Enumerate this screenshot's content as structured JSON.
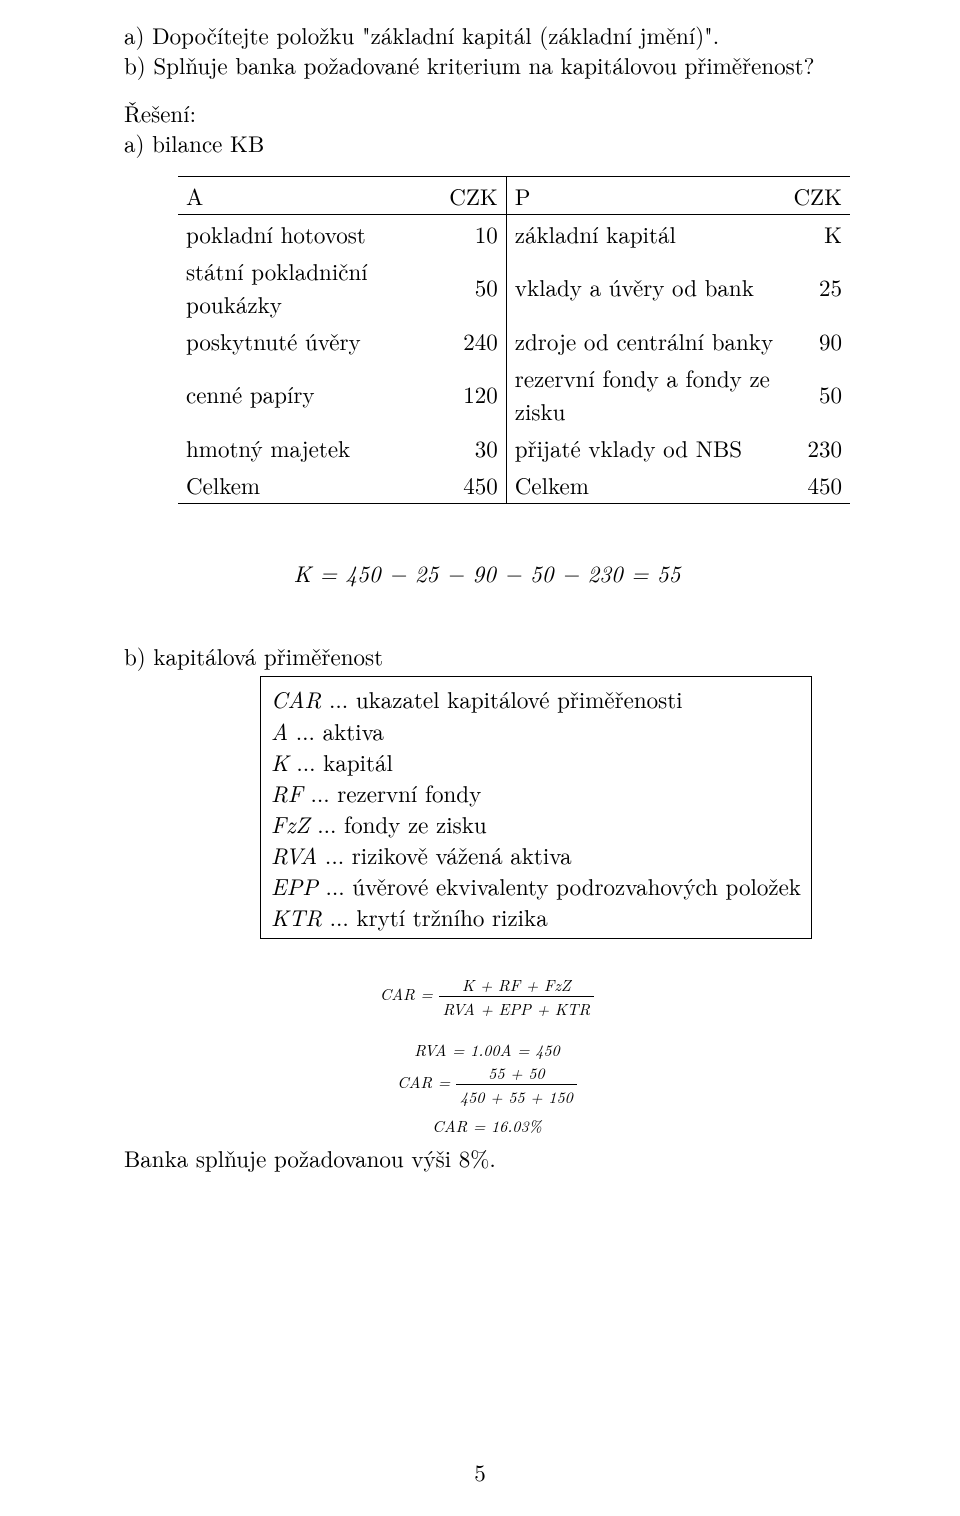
{
  "intro": {
    "q1": "a) Dopočítejte položku \"základní kapitál (základní jmění)\".",
    "q2": "b) Splňuje banka požadované kriterium na kapitálovou přiměřenost?"
  },
  "solution_heading": "Řešení:",
  "part_a_label": "a) bilance KB",
  "balance_table": {
    "header": {
      "a": "A",
      "czk": "CZK",
      "p": "P"
    },
    "rows": [
      {
        "l_label": "pokladní hotovost",
        "l_val": "10",
        "r_label": "základní kapitál",
        "r_val": "K"
      },
      {
        "l_label": "státní pokladniční poukázky",
        "l_val": "50",
        "r_label": "vklady a úvěry od bank",
        "r_val": "25"
      },
      {
        "l_label": "poskytnuté úvěry",
        "l_val": "240",
        "r_label": "zdroje od centrální banky",
        "r_val": "90"
      },
      {
        "l_label": "cenné papíry",
        "l_val": "120",
        "r_label": "rezervní fondy a fondy ze zisku",
        "r_val": "50"
      },
      {
        "l_label": "hmotný majetek",
        "l_val": "30",
        "r_label": "přijaté vklady od NBS",
        "r_val": "230"
      },
      {
        "l_label": "Celkem",
        "l_val": "450",
        "r_label": "Celkem",
        "r_val": "450"
      }
    ]
  },
  "eq_k": "K = 450 − 25 − 90 − 50 − 230 = 55",
  "part_b_label": "b) kapitálová přiměřenost",
  "defs": [
    {
      "sym": "CAR",
      "txt": " ... ukazatel kapitálové přiměřenosti"
    },
    {
      "sym": "A",
      "txt": " ... aktiva"
    },
    {
      "sym": "K",
      "txt": " ... kapitál"
    },
    {
      "sym": "RF",
      "txt": " ... rezervní fondy"
    },
    {
      "sym": "FzZ",
      "txt": " ... fondy ze zisku"
    },
    {
      "sym": "RVA",
      "txt": " ... rizikově vážená aktiva"
    },
    {
      "sym": "EPP",
      "txt": " ... úvěrové ekvivalenty podrozvahových položek"
    },
    {
      "sym": "KTR",
      "txt": " ... krytí tržního rizika"
    }
  ],
  "eq_car_frac": {
    "lhs": "CAR =",
    "num": "K + RF + FzZ",
    "den": "RVA + EPP + KTR"
  },
  "eq_rva": "RVA = 1.00A = 450",
  "eq_car2": {
    "lhs": "CAR =",
    "num": "55 + 50",
    "den": "450 + 55 + 150"
  },
  "eq_car_result": "CAR = 16.03%",
  "conclusion": "Banka splňuje požadovanou výši 8%.",
  "page_number": "5",
  "colors": {
    "text": "#000000",
    "bg": "#ffffff",
    "rule": "#000000"
  }
}
